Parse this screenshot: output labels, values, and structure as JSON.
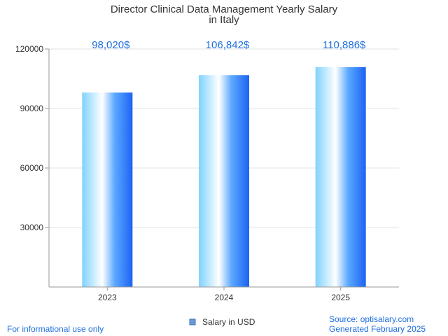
{
  "chart_data": {
    "type": "bar",
    "title": [
      "Director Clinical Data Management Yearly Salary",
      "in Italy"
    ],
    "categories": [
      "2023",
      "2024",
      "2025"
    ],
    "values": [
      98020,
      106842,
      110886
    ],
    "value_labels": [
      "98,020$",
      "106,842$",
      "110,886$"
    ],
    "ylim": [
      0,
      120000
    ],
    "yticks": [
      30000,
      60000,
      90000,
      120000
    ],
    "ytick_labels": [
      "30000",
      "60000",
      "90000",
      "120000"
    ],
    "grid": true,
    "legend": {
      "label": "Salary in USD",
      "position": "bottom-center",
      "color": "#4f7fc7"
    },
    "colors": {
      "bar_light": "#e8f7ff",
      "bar_mid": "#9ddcff",
      "bar_dark": "#1c63f2",
      "label": "#1e6fe0"
    }
  },
  "footer": {
    "left": "For informational use only",
    "source": "Source: optisalary.com",
    "generated": "Generated February 2025"
  }
}
